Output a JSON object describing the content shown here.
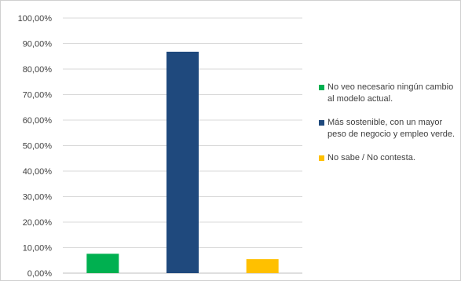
{
  "chart_data": {
    "type": "bar",
    "categories": [
      "No veo necesario ningún cambio al modelo actual.",
      "Más sostenible, con un mayor peso de negocio y empleo verde.",
      "No sabe / No contesta."
    ],
    "values": [
      7.6,
      86.8,
      5.5
    ],
    "colors": [
      "#00b050",
      "#1f497d",
      "#ffc000"
    ],
    "ylim": [
      0,
      100
    ],
    "yticks": [
      "0,00%",
      "10,00%",
      "20,00%",
      "30,00%",
      "40,00%",
      "50,00%",
      "60,00%",
      "70,00%",
      "80,00%",
      "90,00%",
      "100,00%"
    ],
    "grid": true,
    "legend_position": "right"
  }
}
